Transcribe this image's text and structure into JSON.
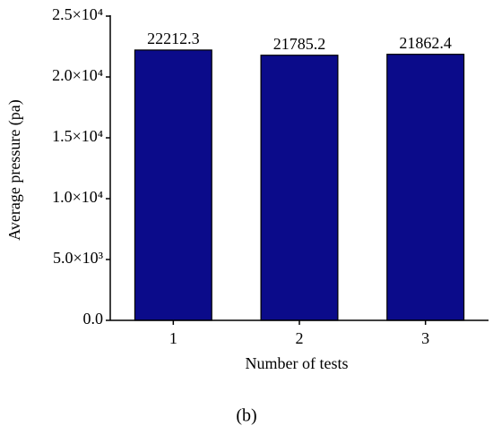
{
  "chart_data": {
    "type": "bar",
    "x_label": "Number of tests",
    "y_label": "Average pressure (pa)",
    "caption": "(b)",
    "categories": [
      "1",
      "2",
      "3"
    ],
    "values": [
      22212.3,
      21785.2,
      21862.4
    ],
    "color": "#0b0b8a",
    "ylim": [
      0,
      25000
    ],
    "yticks": [
      {
        "value": 0,
        "label": "0.0"
      },
      {
        "value": 5000,
        "label": "5.0×10³"
      },
      {
        "value": 10000,
        "label": "1.0×10⁴"
      },
      {
        "value": 15000,
        "label": "1.5×10⁴"
      },
      {
        "value": 20000,
        "label": "2.0×10⁴"
      },
      {
        "value": 25000,
        "label": "2.5×10⁴"
      }
    ],
    "grid": false
  }
}
